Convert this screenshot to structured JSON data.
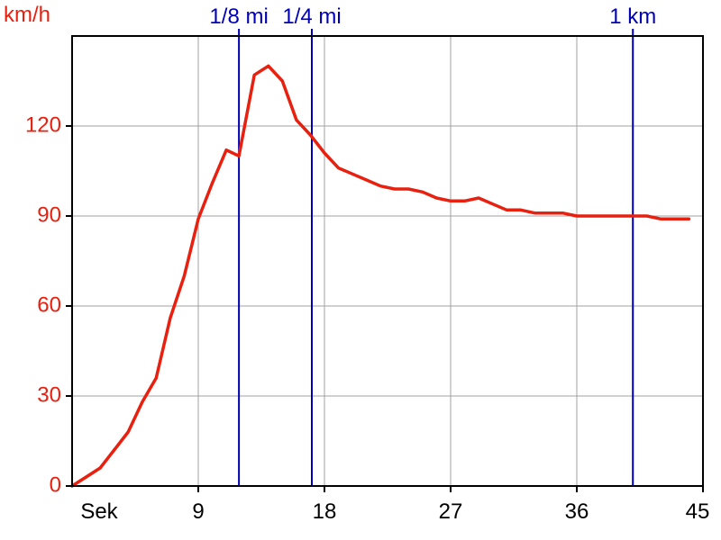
{
  "chart_data": {
    "type": "line",
    "ylabel": "km/h",
    "xlabel": "Sek",
    "xlim": [
      0,
      45
    ],
    "ylim": [
      0,
      150
    ],
    "x_ticks": [
      9,
      18,
      27,
      36,
      45
    ],
    "y_ticks": [
      0,
      30,
      60,
      90,
      120
    ],
    "grid": true,
    "colors": {
      "series": "#e8200f",
      "y_labels": "#e8200f",
      "markers": "#0000b8",
      "grid": "#a0a0a0",
      "axes": "#000000"
    },
    "markers": [
      {
        "label": "1/8 mi",
        "x": 11.9
      },
      {
        "label": "1/4 mi",
        "x": 17.1
      },
      {
        "label": "1 km",
        "x": 40.0
      }
    ],
    "series": [
      {
        "x": [
          0,
          1,
          2,
          3,
          4,
          5,
          6,
          7,
          8,
          9,
          10,
          11,
          11.9,
          13,
          14,
          15,
          16,
          17,
          18,
          19,
          20,
          21,
          22,
          23,
          24,
          25,
          26,
          27,
          28,
          29,
          30,
          31,
          32,
          33,
          34,
          35,
          36,
          37,
          38,
          39,
          40,
          41,
          42,
          43,
          44
        ],
        "y": [
          0,
          3,
          6,
          12,
          18,
          28,
          36,
          56,
          70,
          89,
          101,
          112,
          110,
          137,
          140,
          135,
          122,
          117,
          111,
          106,
          104,
          102,
          100,
          99,
          99,
          98,
          96,
          95,
          95,
          96,
          94,
          92,
          92,
          91,
          91,
          91,
          90,
          90,
          90,
          90,
          90,
          90,
          89,
          89,
          89
        ]
      }
    ]
  }
}
